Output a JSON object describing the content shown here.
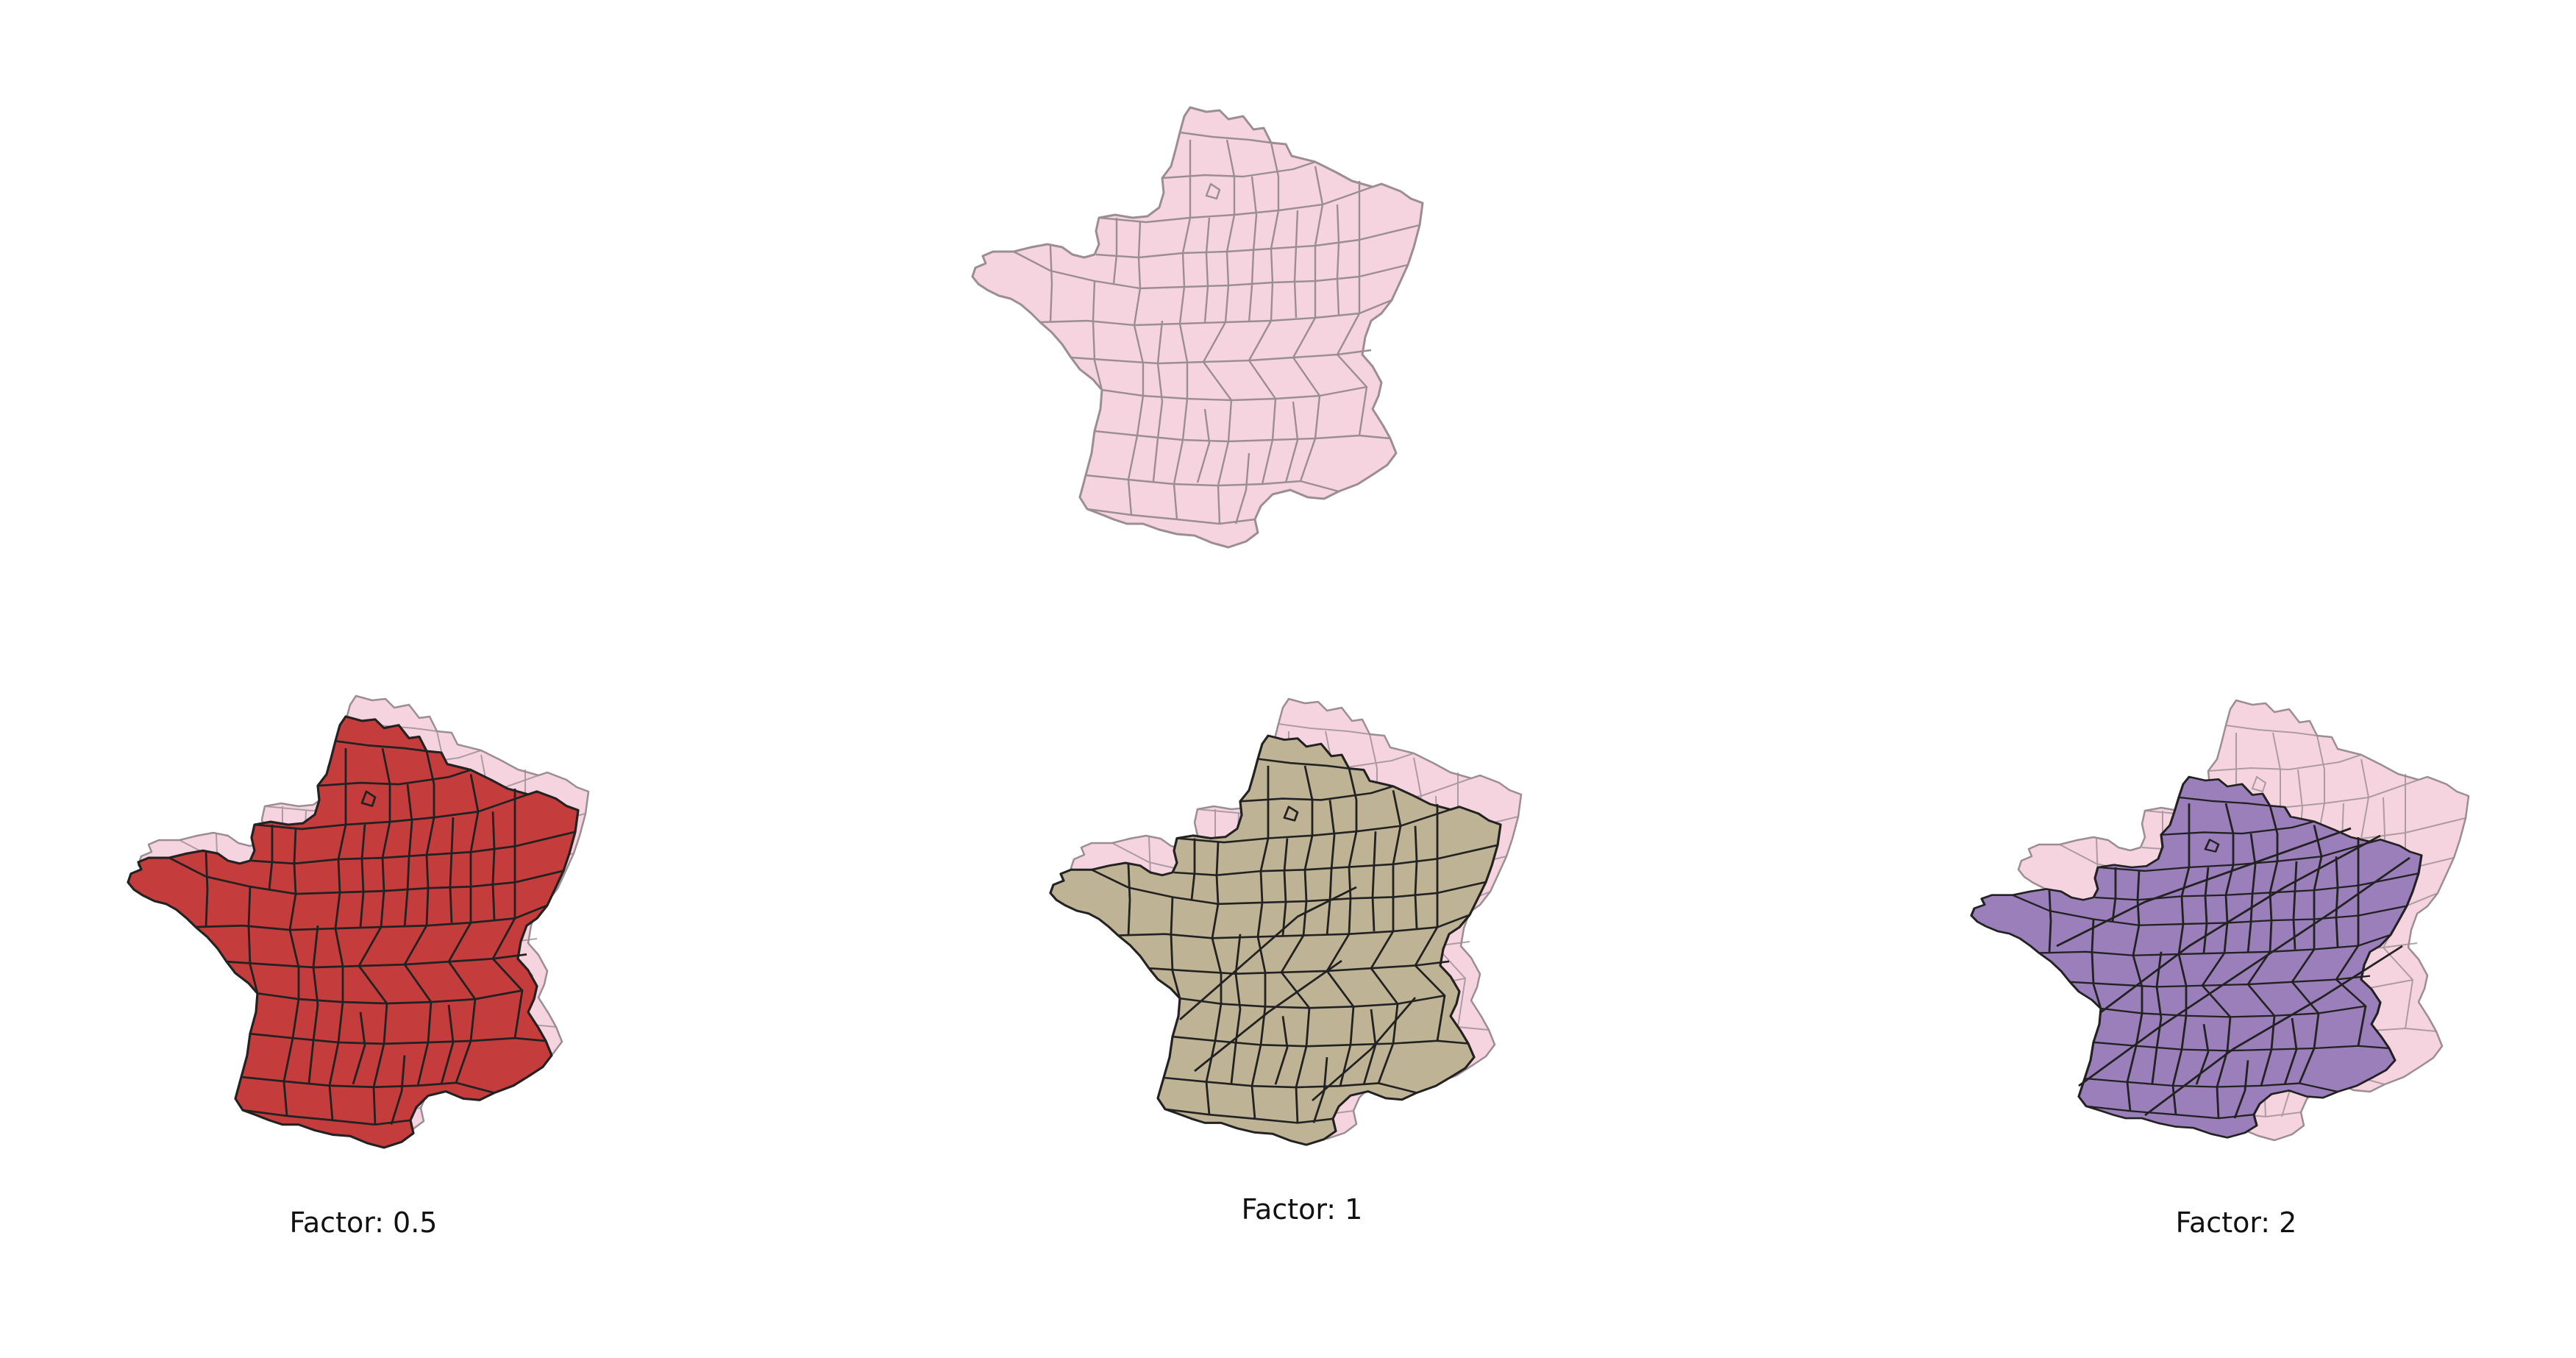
{
  "colors": {
    "original_fill": "#f6d4df",
    "original_stroke": "#9a8e94",
    "factor_0_5_fill": "#c53c3c",
    "factor_1_fill": "#bfb395",
    "factor_2_fill": "#9a7fba",
    "outline_dark": "#222222"
  },
  "maps": [
    {
      "id": "original",
      "label": ""
    },
    {
      "id": "factor-0-5",
      "label": "Factor: 0.5"
    },
    {
      "id": "factor-1",
      "label": "Factor: 1"
    },
    {
      "id": "factor-2",
      "label": "Factor: 2"
    }
  ]
}
